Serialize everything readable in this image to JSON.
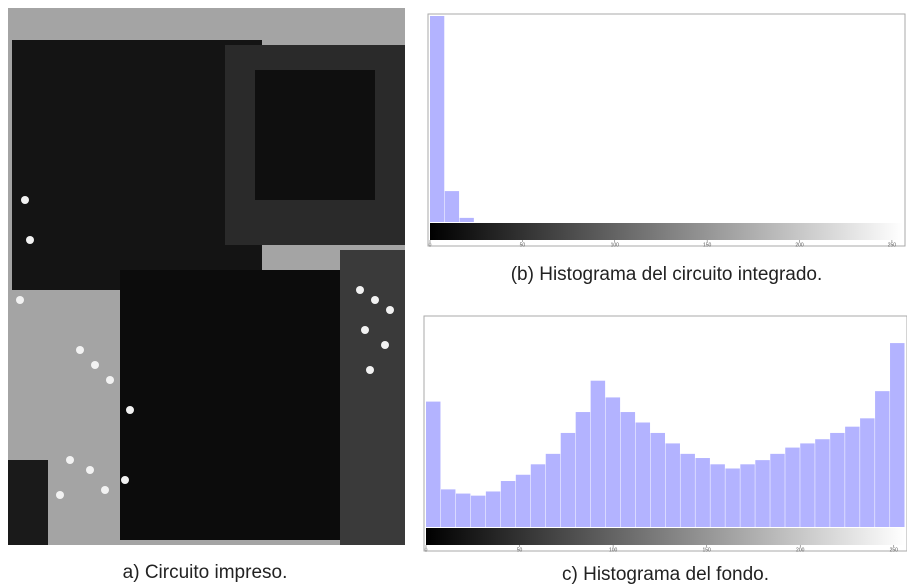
{
  "figure": {
    "photo_caption": "a) Circuito impreso."
  },
  "chart_data": [
    {
      "type": "histogram",
      "title": "(b) Histograma del circuito integrado.",
      "bins": [
        0,
        8,
        16,
        24,
        32,
        40,
        48,
        56,
        64,
        72,
        80,
        88,
        96,
        104,
        112,
        120,
        128,
        136,
        144,
        152,
        160,
        168,
        176,
        184,
        192,
        200,
        208,
        216,
        224,
        232,
        240,
        248,
        256
      ],
      "values": [
        100,
        15,
        2,
        0,
        0,
        0,
        0,
        0,
        0,
        0,
        0,
        0,
        0,
        0,
        0,
        0,
        0,
        0,
        0,
        0,
        0,
        0,
        0,
        0,
        0,
        0,
        0,
        0,
        0,
        0,
        0,
        0
      ],
      "color": "#b3b3ff",
      "xlim": [
        0,
        256
      ],
      "ylim": [
        0,
        100
      ],
      "xticks": [
        0,
        50,
        100,
        150,
        200,
        250
      ]
    },
    {
      "type": "histogram",
      "title": "c) Histograma del fondo.",
      "bins": [
        0,
        8,
        16,
        24,
        32,
        40,
        48,
        56,
        64,
        72,
        80,
        88,
        96,
        104,
        112,
        120,
        128,
        136,
        144,
        152,
        160,
        168,
        176,
        184,
        192,
        200,
        208,
        216,
        224,
        232,
        240,
        248,
        256
      ],
      "values": [
        60,
        18,
        16,
        15,
        17,
        22,
        25,
        30,
        35,
        45,
        55,
        70,
        62,
        55,
        50,
        45,
        40,
        35,
        33,
        30,
        28,
        30,
        32,
        35,
        38,
        40,
        42,
        45,
        48,
        52,
        65,
        88
      ],
      "color": "#b3b3ff",
      "xlim": [
        0,
        256
      ],
      "ylim": [
        0,
        100
      ],
      "xticks": [
        0,
        50,
        100,
        150,
        200,
        250
      ]
    }
  ]
}
